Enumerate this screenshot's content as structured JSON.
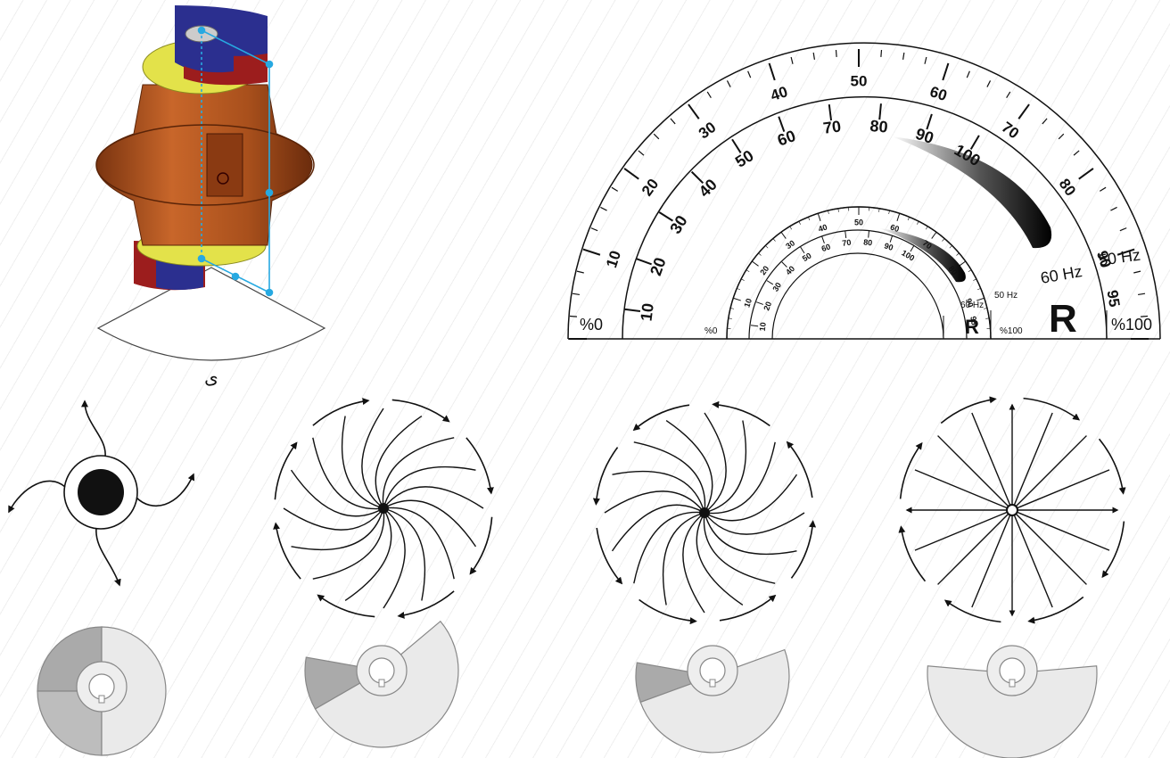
{
  "motor": {
    "caption": "ی",
    "colors": {
      "body": "#b5541c",
      "body_dark": "#7a3410",
      "weight_blue": "#2b2f8f",
      "weight_red": "#9c1d1d",
      "weight_yellow": "#e3e24a",
      "guide": "#27a9e1"
    }
  },
  "scale": {
    "outer": {
      "start_label": "%0",
      "end_label": "%100",
      "ticks": [
        "10",
        "20",
        "30",
        "40",
        "50",
        "60",
        "70",
        "80",
        "90",
        "95"
      ],
      "hz50": "50 Hz",
      "hz60": "60 Hz",
      "r_mark": "R",
      "inner_ticks": [
        "10",
        "20",
        "30",
        "40",
        "50",
        "60",
        "70",
        "80",
        "90",
        "100"
      ]
    },
    "small": {
      "start_label": "%0",
      "end_label": "%100",
      "ticks": [
        "10",
        "20",
        "30",
        "40",
        "50",
        "60",
        "70",
        "80",
        "90",
        "95"
      ],
      "hz50": "50 Hz",
      "hz60": "60 Hz",
      "r_mark": "R",
      "inner_ticks": [
        "10",
        "20",
        "30",
        "40",
        "50",
        "60",
        "70",
        "80",
        "90",
        "100"
      ]
    }
  },
  "force_patterns": [
    {
      "name": "hub-with-four-arms",
      "arms": 4
    },
    {
      "name": "spiral-counterclockwise",
      "arms": 16
    },
    {
      "name": "spiral-clockwise",
      "arms": 16
    },
    {
      "name": "radial-star",
      "arms": 16
    }
  ],
  "eccentric_weights": [
    {
      "name": "weights-half-overlap",
      "gap_deg": 0
    },
    {
      "name": "weights-partial-overlap",
      "gap_deg": 40
    },
    {
      "name": "weights-small-overlap",
      "gap_deg": 20
    },
    {
      "name": "weights-aligned",
      "gap_deg": 0
    }
  ]
}
